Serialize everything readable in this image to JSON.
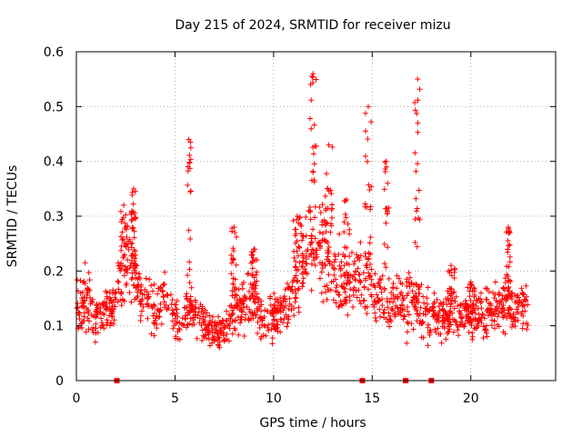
{
  "chart_data": {
    "type": "scatter",
    "title": "Day 215 of 2024, SRMTID for receiver mizu",
    "xlabel": "GPS time / hours",
    "ylabel": "SRMTID / TECUs",
    "xlim": [
      0,
      24.3
    ],
    "ylim": [
      0,
      0.6
    ],
    "xticks": [
      0,
      5,
      10,
      15,
      20
    ],
    "yticks": [
      0,
      0.1,
      0.2,
      0.3,
      0.4,
      0.5,
      0.6
    ],
    "xtick_labels": [
      "0",
      "5",
      "10",
      "15",
      "20"
    ],
    "ytick_labels": [
      "0",
      "0.1",
      "0.2",
      "0.3",
      "0.4",
      "0.5",
      "0.6"
    ],
    "grid": true,
    "marker": "+",
    "color": "#ff0000",
    "zero_markers_x": [
      2.05,
      14.5,
      16.7,
      18.0
    ],
    "trend": [
      [
        0.0,
        0.12
      ],
      [
        0.5,
        0.15
      ],
      [
        1.0,
        0.11
      ],
      [
        1.5,
        0.12
      ],
      [
        2.0,
        0.15
      ],
      [
        2.4,
        0.19
      ],
      [
        2.8,
        0.22
      ],
      [
        3.3,
        0.15
      ],
      [
        4.0,
        0.13
      ],
      [
        4.5,
        0.15
      ],
      [
        5.0,
        0.11
      ],
      [
        5.5,
        0.11
      ],
      [
        6.0,
        0.13
      ],
      [
        6.5,
        0.1
      ],
      [
        7.0,
        0.09
      ],
      [
        7.5,
        0.09
      ],
      [
        8.0,
        0.13
      ],
      [
        8.5,
        0.14
      ],
      [
        9.0,
        0.15
      ],
      [
        9.5,
        0.11
      ],
      [
        10.0,
        0.12
      ],
      [
        10.5,
        0.13
      ],
      [
        11.0,
        0.16
      ],
      [
        11.5,
        0.22
      ],
      [
        12.0,
        0.26
      ],
      [
        12.5,
        0.24
      ],
      [
        13.0,
        0.2
      ],
      [
        13.5,
        0.17
      ],
      [
        14.0,
        0.18
      ],
      [
        14.5,
        0.19
      ],
      [
        15.0,
        0.17
      ],
      [
        15.5,
        0.15
      ],
      [
        16.0,
        0.14
      ],
      [
        16.5,
        0.14
      ],
      [
        17.0,
        0.15
      ],
      [
        17.5,
        0.13
      ],
      [
        18.0,
        0.12
      ],
      [
        18.5,
        0.12
      ],
      [
        19.0,
        0.12
      ],
      [
        19.5,
        0.12
      ],
      [
        20.0,
        0.11
      ],
      [
        20.5,
        0.12
      ],
      [
        21.0,
        0.13
      ],
      [
        21.5,
        0.14
      ],
      [
        22.0,
        0.14
      ],
      [
        22.5,
        0.13
      ],
      [
        22.9,
        0.12
      ]
    ],
    "bursts": [
      {
        "x": 2.4,
        "peak": 0.32,
        "width": 0.3
      },
      {
        "x": 2.9,
        "peak": 0.35,
        "width": 0.25
      },
      {
        "x": 5.7,
        "peak": 0.44,
        "width": 0.25
      },
      {
        "x": 8.0,
        "peak": 0.28,
        "width": 0.3
      },
      {
        "x": 9.0,
        "peak": 0.24,
        "width": 0.3
      },
      {
        "x": 11.2,
        "peak": 0.3,
        "width": 0.4
      },
      {
        "x": 12.0,
        "peak": 0.56,
        "width": 0.35
      },
      {
        "x": 12.8,
        "peak": 0.43,
        "width": 0.35
      },
      {
        "x": 13.7,
        "peak": 0.33,
        "width": 0.3
      },
      {
        "x": 14.8,
        "peak": 0.5,
        "width": 0.35
      },
      {
        "x": 15.7,
        "peak": 0.4,
        "width": 0.3
      },
      {
        "x": 17.3,
        "peak": 0.55,
        "width": 0.3
      },
      {
        "x": 19.0,
        "peak": 0.21,
        "width": 0.4
      },
      {
        "x": 20.0,
        "peak": 0.18,
        "width": 0.4
      },
      {
        "x": 21.9,
        "peak": 0.28,
        "width": 0.3
      }
    ]
  }
}
